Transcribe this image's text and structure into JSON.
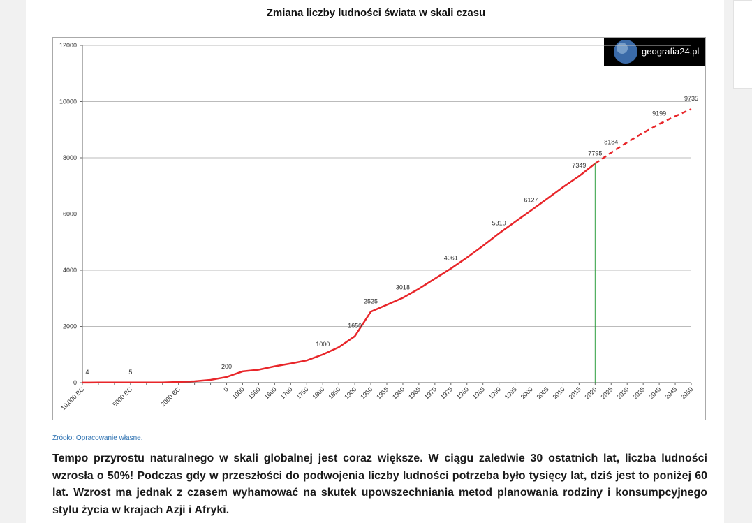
{
  "page": {
    "title": "Zmiana liczby ludności świata w skali czasu",
    "logo": "geografia24.pl",
    "source": "Źródło: Opracowanie własne.",
    "paragraph": "Tempo przyrostu naturalnego w skali globalnej jest coraz większe. W ciągu zaledwie 30 ostatnich lat, liczba ludności wzrosła o 50%! Podczas gdy w przeszłości do podwojenia liczby ludności potrzeba było tysięcy lat, dziś jest to poniżej 60 lat. Wzrost ma jednak z czasem wyhamować na skutek upowszechniania metod planowania rodziny i konsumpcyjnego stylu życia w krajach Azji i Afryki."
  },
  "chart_data": {
    "type": "line",
    "categories": [
      "10,000 BC",
      null,
      null,
      "5000 BC",
      null,
      null,
      "2000 BC",
      null,
      null,
      "0",
      "1000",
      "1500",
      "1600",
      "1700",
      "1750",
      "1800",
      "1850",
      "1900",
      "1950",
      "1955",
      "1960",
      "1965",
      "1970",
      "1975",
      "1980",
      "1985",
      "1990",
      "1995",
      "2000",
      "2005",
      "2010",
      "2015",
      "2020",
      "2025",
      "2030",
      "2035",
      "2040",
      "2045",
      "2050"
    ],
    "series": [
      {
        "color": "#e8262a",
        "values": [
          4,
          5,
          5,
          5,
          5,
          5,
          27,
          50,
          100,
          200,
          400,
          460,
          580,
          680,
          790,
          1000,
          1260,
          1650,
          2525,
          2770,
          3018,
          3340,
          3700,
          4061,
          4450,
          4870,
          5310,
          5720,
          6127,
          6540,
          6960,
          7349,
          7795,
          8184,
          8550,
          8890,
          9199,
          9480,
          9735
        ],
        "value_labels": [
          "4",
          null,
          null,
          "5",
          null,
          null,
          null,
          null,
          null,
          "200",
          null,
          null,
          null,
          null,
          null,
          "1000",
          null,
          "1650",
          "2525",
          null,
          "3018",
          null,
          null,
          "4061",
          null,
          null,
          "5310",
          null,
          "6127",
          null,
          null,
          "7349",
          "7795",
          "8184",
          null,
          null,
          "9199",
          null,
          "9735"
        ]
      }
    ],
    "dashed_after": "2020",
    "marker_line": "2020",
    "marker_color": "#2e9e3e",
    "ylim": [
      0,
      12000
    ],
    "yticks": [
      0,
      2000,
      4000,
      6000,
      8000,
      10000,
      12000
    ],
    "grid": true
  }
}
